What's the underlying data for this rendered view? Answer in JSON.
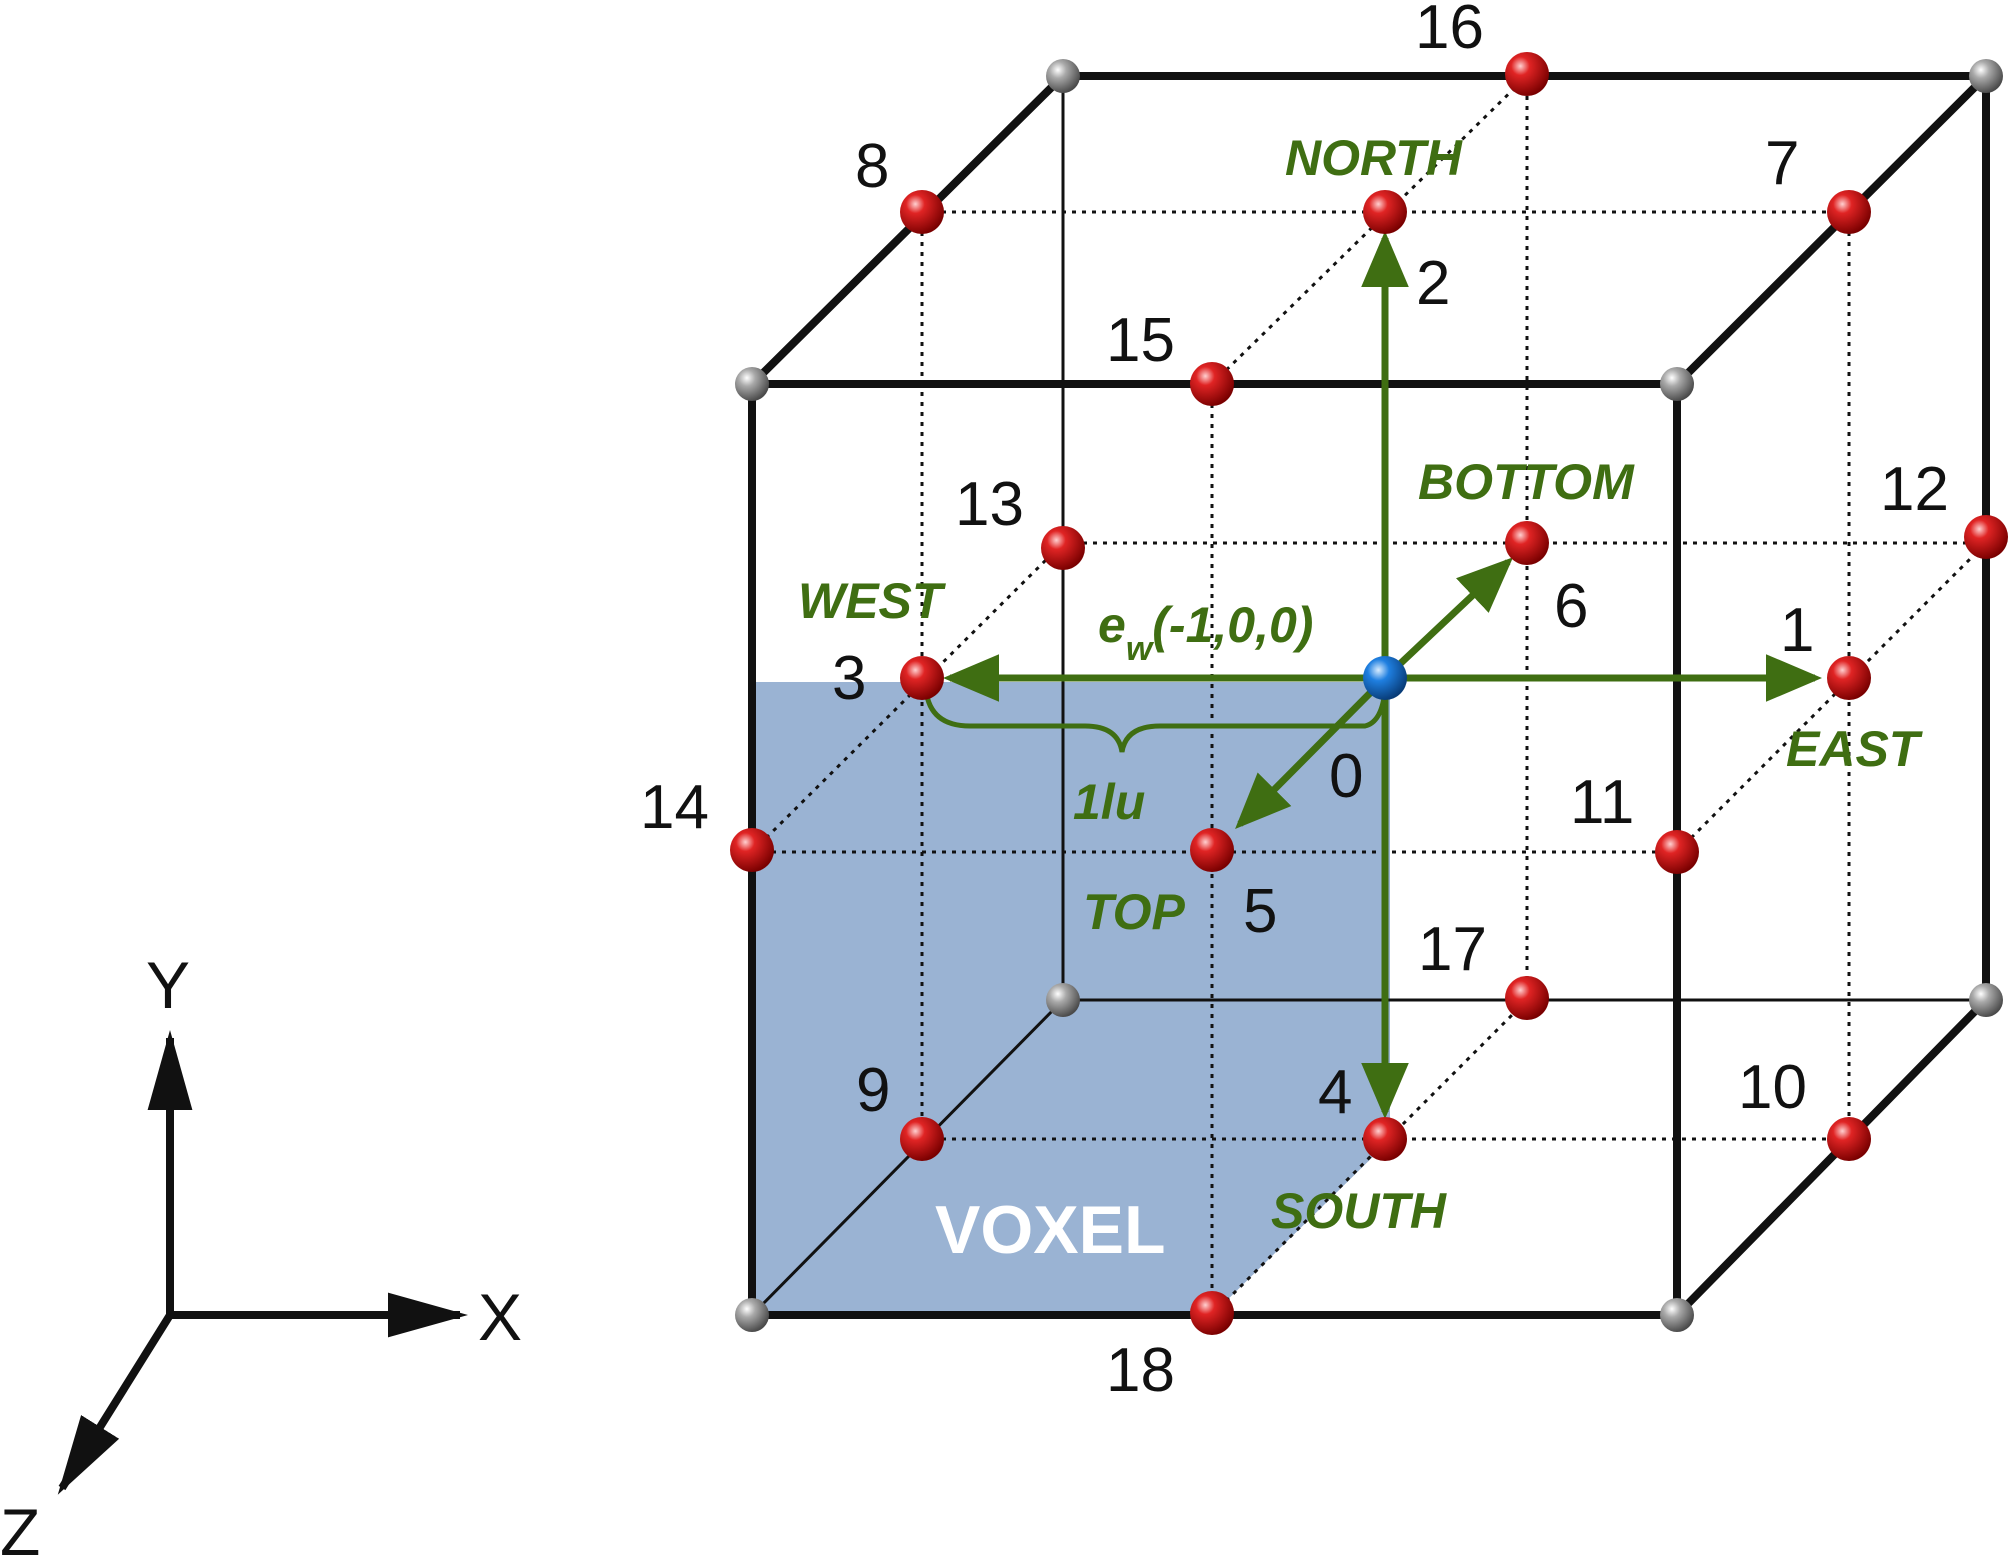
{
  "nodes": {
    "n0": "0",
    "n1": "1",
    "n2": "2",
    "n3": "3",
    "n4": "4",
    "n5": "5",
    "n6": "6",
    "n7": "7",
    "n8": "8",
    "n9": "9",
    "n10": "10",
    "n11": "11",
    "n12": "12",
    "n13": "13",
    "n14": "14",
    "n15": "15",
    "n16": "16",
    "n17": "17",
    "n18": "18"
  },
  "directions": {
    "north": "NORTH",
    "south": "SOUTH",
    "east": "EAST",
    "west": "WEST",
    "top": "TOP",
    "bottom": "BOTTOM"
  },
  "vector": {
    "e": "e",
    "sub": "w",
    "coords": "(-1,0,0)"
  },
  "lattice_unit": "1lu",
  "voxel_label": "VOXEL",
  "axes": {
    "x": "X",
    "y": "Y",
    "z": "Z"
  },
  "colors": {
    "green": "#3f6e12",
    "voxel_fill": "#9ab3d3",
    "red_node": "#cc1010",
    "gray_node": "#8a8a8a",
    "blue_node": "#1a72c8"
  }
}
